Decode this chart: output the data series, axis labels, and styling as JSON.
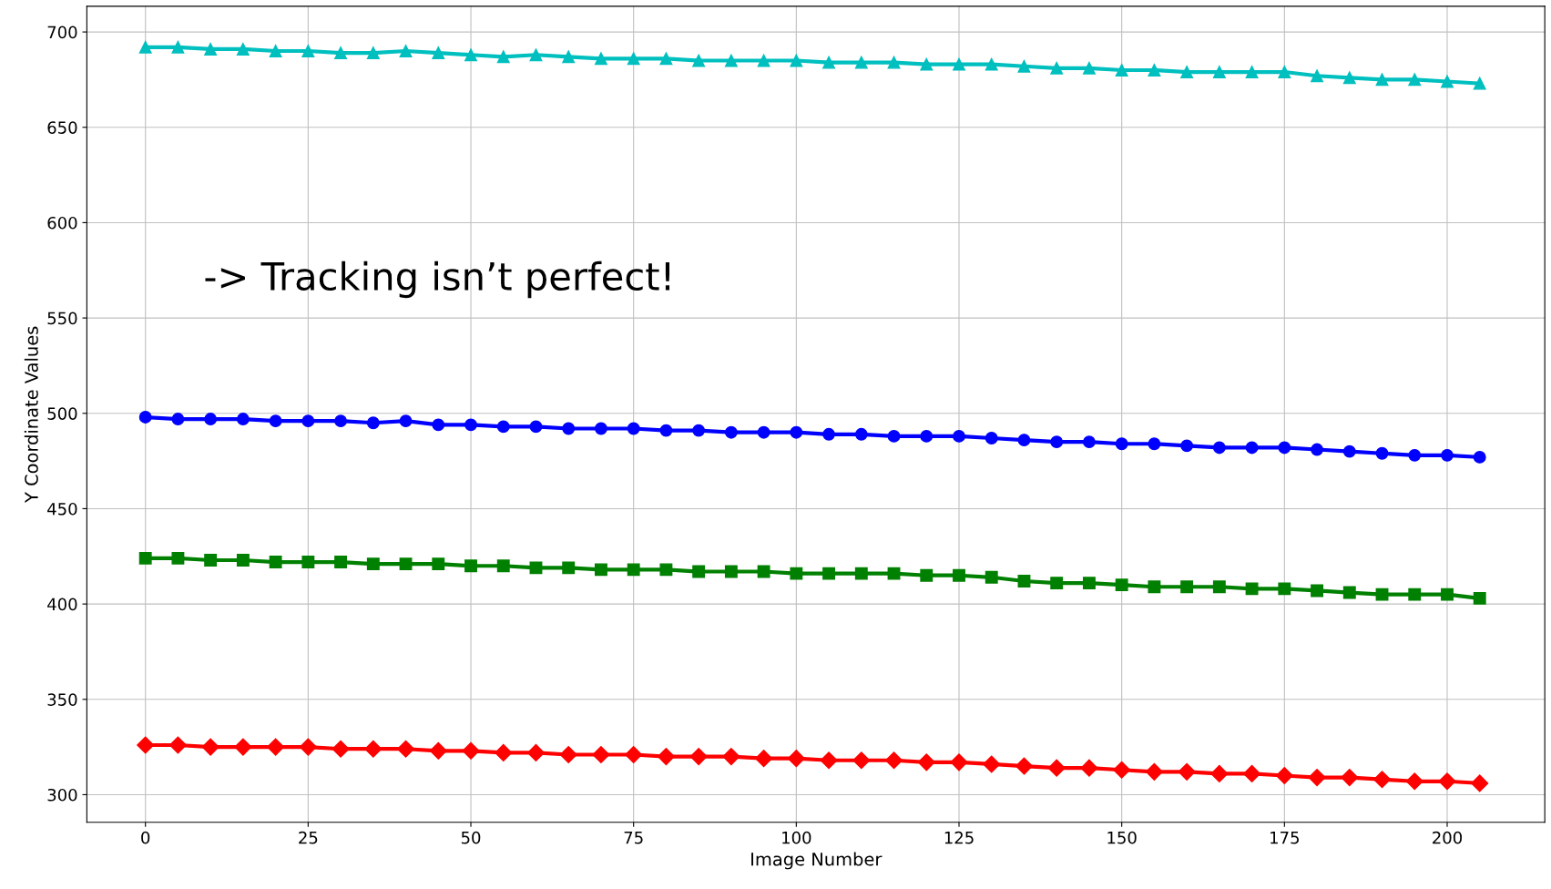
{
  "chart_data": {
    "type": "line",
    "xlabel": "Image Number",
    "ylabel": "Y Coordinate Values",
    "annotations": [
      "-> Tracking isn’t perfect!"
    ],
    "x": [
      0,
      5,
      10,
      15,
      20,
      25,
      30,
      35,
      40,
      45,
      50,
      55,
      60,
      65,
      70,
      75,
      80,
      85,
      90,
      95,
      100,
      105,
      110,
      115,
      120,
      125,
      130,
      135,
      140,
      145,
      150,
      155,
      160,
      165,
      170,
      175,
      180,
      185,
      190,
      195,
      200,
      205
    ],
    "series": [
      {
        "color": "#00bfbf",
        "marker": "triangle",
        "values": [
          692,
          692,
          691,
          691,
          690,
          690,
          689,
          689,
          690,
          689,
          688,
          687,
          688,
          687,
          686,
          686,
          686,
          685,
          685,
          685,
          685,
          684,
          684,
          684,
          683,
          683,
          683,
          682,
          681,
          681,
          680,
          680,
          679,
          679,
          679,
          679,
          677,
          676,
          675,
          675,
          674,
          673
        ]
      },
      {
        "color": "#0000ff",
        "marker": "circle",
        "values": [
          498,
          497,
          497,
          497,
          496,
          496,
          496,
          495,
          496,
          494,
          494,
          493,
          493,
          492,
          492,
          492,
          491,
          491,
          490,
          490,
          490,
          489,
          489,
          488,
          488,
          488,
          487,
          486,
          485,
          485,
          484,
          484,
          483,
          482,
          482,
          482,
          481,
          480,
          479,
          478,
          478,
          477
        ]
      },
      {
        "color": "#008000",
        "marker": "square",
        "values": [
          424,
          424,
          423,
          423,
          422,
          422,
          422,
          421,
          421,
          421,
          420,
          420,
          419,
          419,
          418,
          418,
          418,
          417,
          417,
          417,
          416,
          416,
          416,
          416,
          415,
          415,
          414,
          412,
          411,
          411,
          410,
          409,
          409,
          409,
          408,
          408,
          407,
          406,
          405,
          405,
          405,
          403
        ]
      },
      {
        "color": "#ff0000",
        "marker": "diamond",
        "values": [
          326,
          326,
          325,
          325,
          325,
          325,
          324,
          324,
          324,
          323,
          323,
          322,
          322,
          321,
          321,
          321,
          320,
          320,
          320,
          319,
          319,
          318,
          318,
          318,
          317,
          317,
          316,
          315,
          314,
          314,
          313,
          312,
          312,
          311,
          311,
          310,
          309,
          309,
          308,
          307,
          307,
          306
        ]
      }
    ],
    "xlim": [
      -9,
      215
    ],
    "ylim": [
      285.5,
      713.5
    ],
    "xticks": [
      0,
      25,
      50,
      75,
      100,
      125,
      150,
      175,
      200
    ],
    "yticks": [
      300,
      350,
      400,
      450,
      500,
      550,
      600,
      650,
      700
    ],
    "grid": true
  }
}
